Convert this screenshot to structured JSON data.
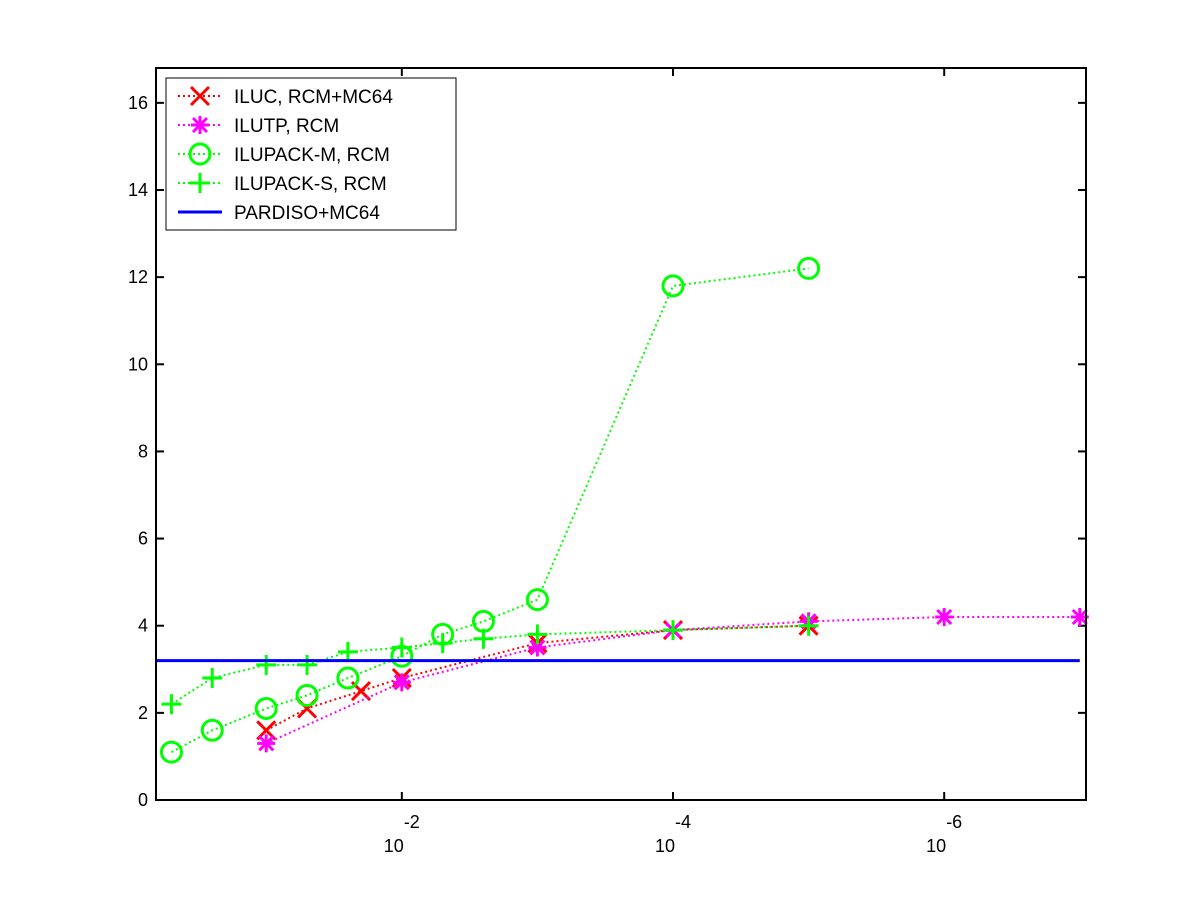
{
  "chart_data": {
    "type": "line",
    "title": "",
    "xlabel": "",
    "ylabel": "",
    "x_scale": "log-reversed",
    "xlim": [
      0.65,
      9e-08
    ],
    "ylim": [
      0,
      16.8
    ],
    "grid": false,
    "legend_position": "top-left",
    "y_ticks": [
      0,
      2,
      4,
      6,
      8,
      10,
      12,
      14,
      16
    ],
    "x_ticks": [
      {
        "base": "10",
        "exponent": "-2",
        "value": 0.01
      },
      {
        "base": "10",
        "exponent": "-4",
        "value": 0.0001
      },
      {
        "base": "10",
        "exponent": "-6",
        "value": 1e-06
      }
    ],
    "series": [
      {
        "name": "ILUC, RCM+MC64",
        "color": "#ff0000",
        "marker": "x",
        "line_style": "dotted",
        "points": [
          {
            "x": 0.1,
            "y": 1.6
          },
          {
            "x": 0.05,
            "y": 2.1
          },
          {
            "x": 0.02,
            "y": 2.5
          },
          {
            "x": 0.01,
            "y": 2.8
          },
          {
            "x": 0.001,
            "y": 3.6
          },
          {
            "x": 0.0001,
            "y": 3.9
          },
          {
            "x": 1e-05,
            "y": 4.0
          }
        ]
      },
      {
        "name": "ILUTP, RCM",
        "color": "#ff00ff",
        "marker": "asterisk",
        "line_style": "dotted",
        "points": [
          {
            "x": 0.1,
            "y": 1.3
          },
          {
            "x": 0.01,
            "y": 2.7
          },
          {
            "x": 0.001,
            "y": 3.5
          },
          {
            "x": 0.0001,
            "y": 3.9
          },
          {
            "x": 1e-05,
            "y": 4.1
          },
          {
            "x": 1e-06,
            "y": 4.2
          },
          {
            "x": 1e-07,
            "y": 4.2
          }
        ]
      },
      {
        "name": "ILUPACK-M, RCM",
        "color": "#00ff00",
        "marker": "circle",
        "line_style": "dotted",
        "points": [
          {
            "x": 0.5,
            "y": 1.1
          },
          {
            "x": 0.25,
            "y": 1.6
          },
          {
            "x": 0.1,
            "y": 2.1
          },
          {
            "x": 0.05,
            "y": 2.4
          },
          {
            "x": 0.025,
            "y": 2.8
          },
          {
            "x": 0.01,
            "y": 3.3
          },
          {
            "x": 0.005,
            "y": 3.8
          },
          {
            "x": 0.0025,
            "y": 4.1
          },
          {
            "x": 0.001,
            "y": 4.6
          },
          {
            "x": 0.0001,
            "y": 11.8
          },
          {
            "x": 1e-05,
            "y": 12.2
          }
        ]
      },
      {
        "name": "ILUPACK-S, RCM",
        "color": "#00ff00",
        "marker": "plus",
        "line_style": "dotted",
        "points": [
          {
            "x": 0.5,
            "y": 2.2
          },
          {
            "x": 0.25,
            "y": 2.8
          },
          {
            "x": 0.1,
            "y": 3.1
          },
          {
            "x": 0.05,
            "y": 3.1
          },
          {
            "x": 0.025,
            "y": 3.4
          },
          {
            "x": 0.01,
            "y": 3.5
          },
          {
            "x": 0.005,
            "y": 3.6
          },
          {
            "x": 0.0025,
            "y": 3.7
          },
          {
            "x": 0.001,
            "y": 3.8
          },
          {
            "x": 0.0001,
            "y": 3.9
          },
          {
            "x": 1e-05,
            "y": 4.0
          }
        ]
      },
      {
        "name": "PARDISO+MC64",
        "color": "#0000ff",
        "marker": "none",
        "line_style": "solid",
        "points": [
          {
            "x": 0.65,
            "y": 3.2
          },
          {
            "x": 1e-07,
            "y": 3.2
          }
        ]
      }
    ]
  }
}
